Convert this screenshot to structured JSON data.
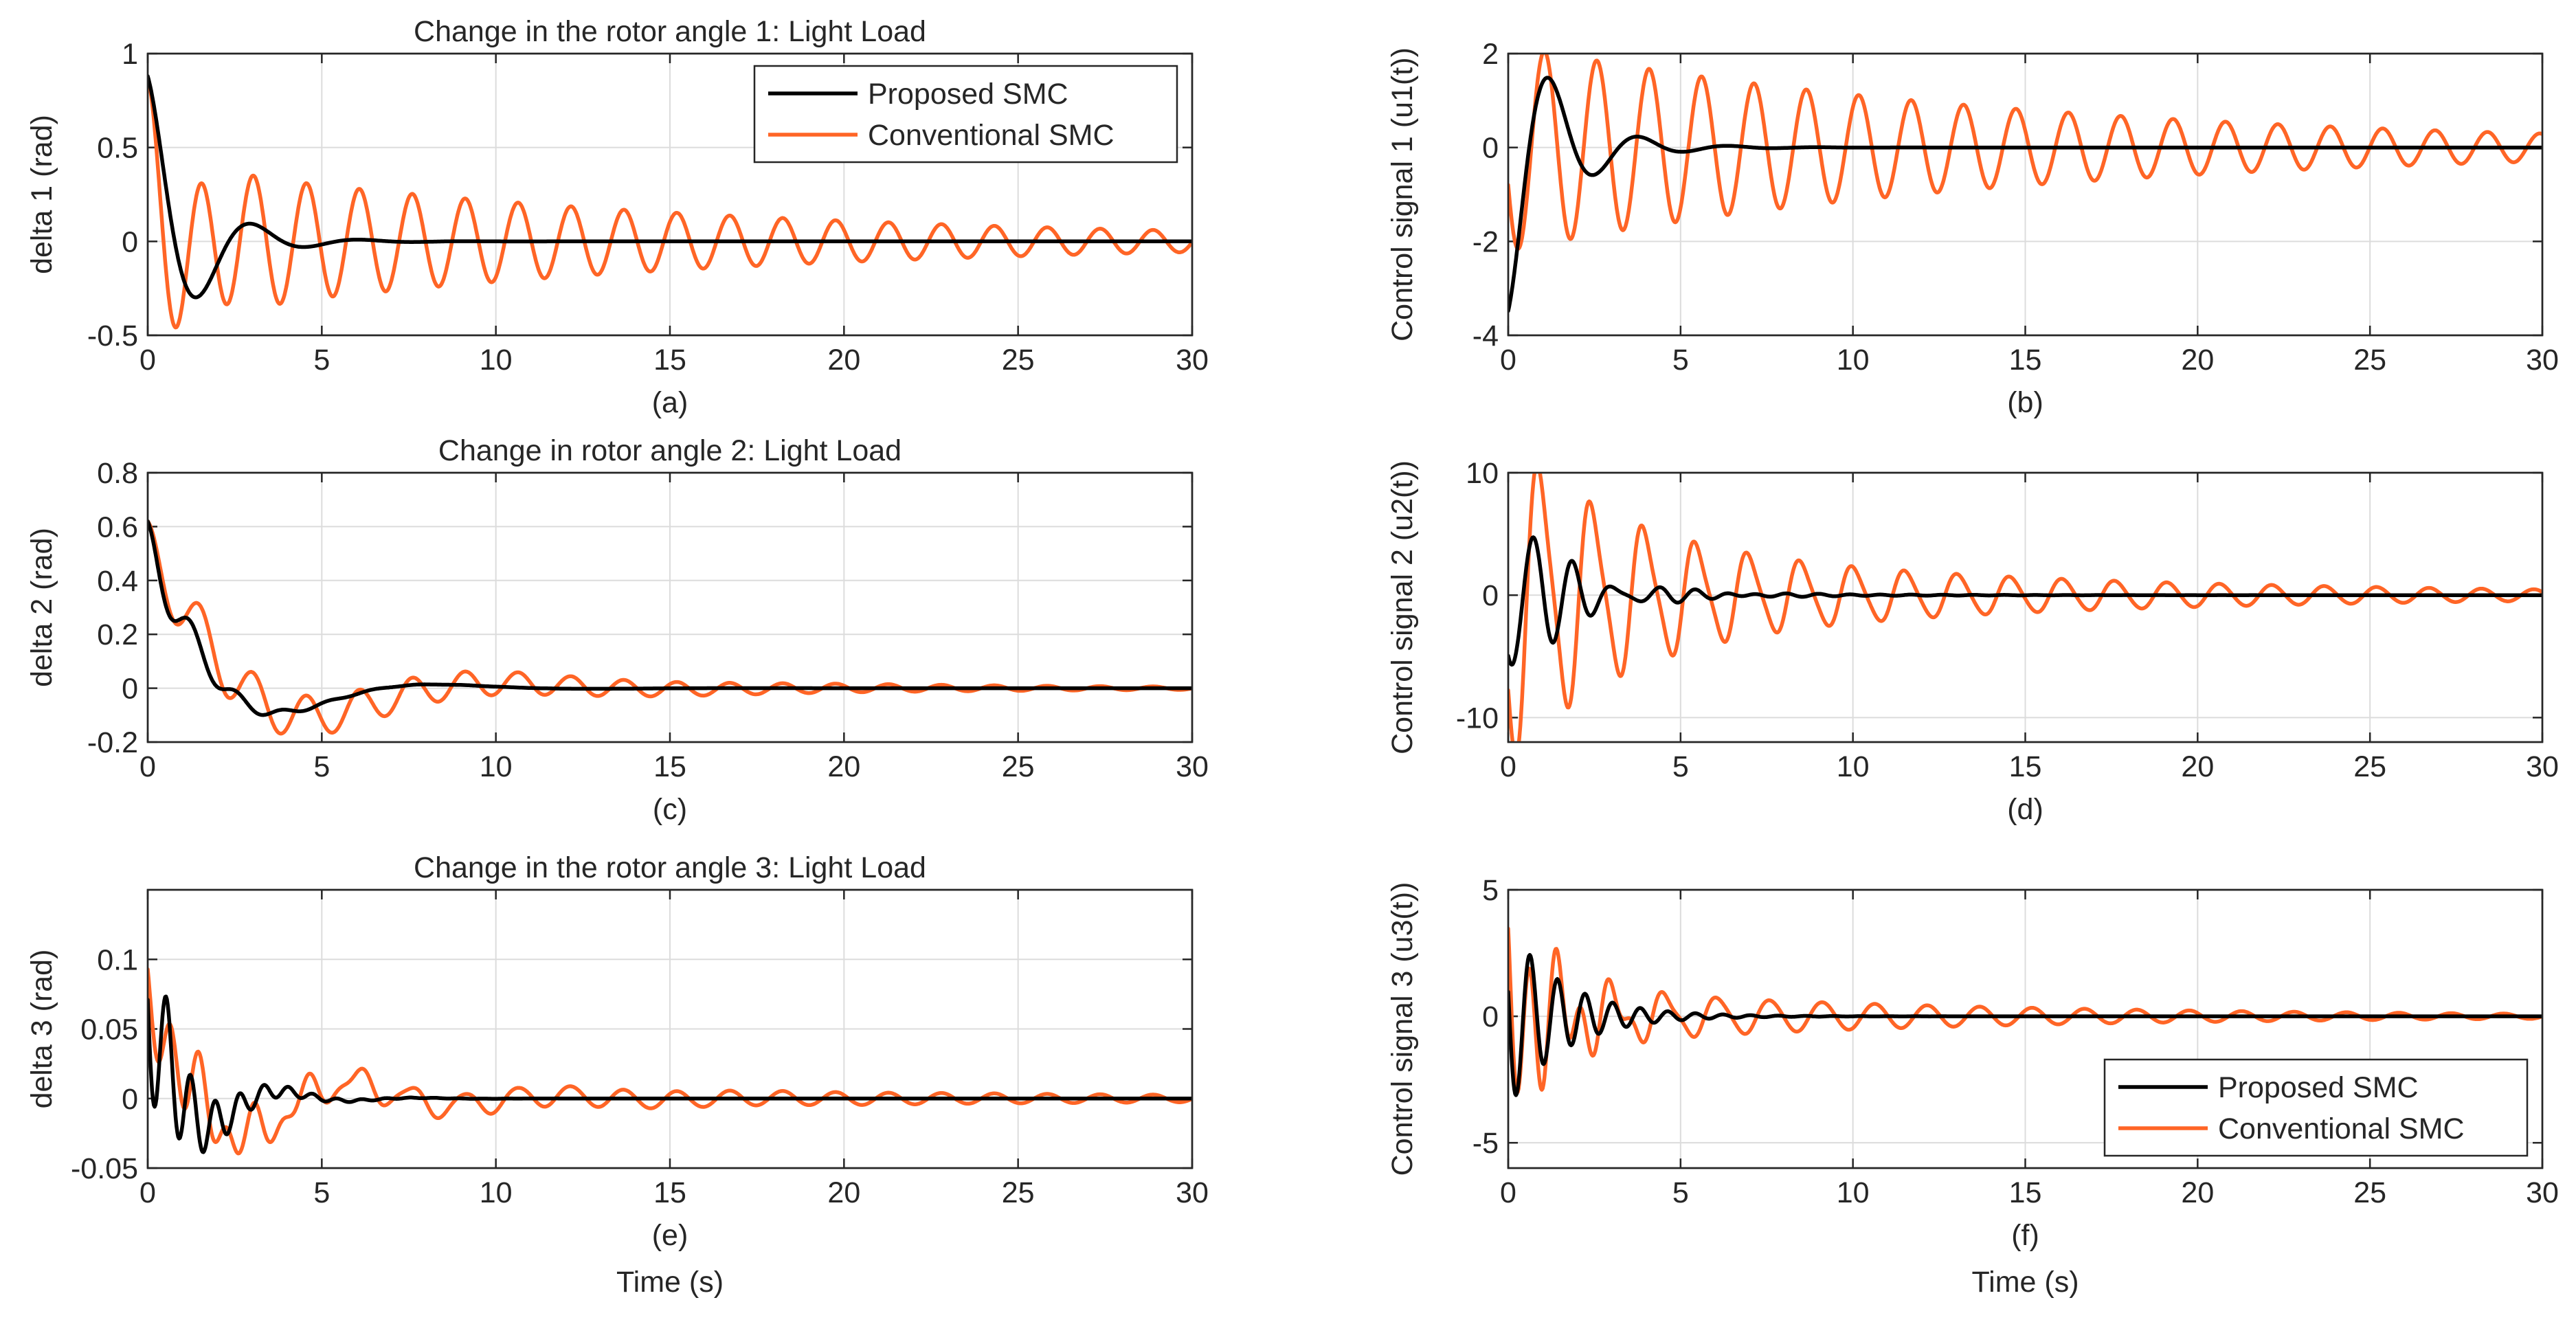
{
  "figure": {
    "colors": {
      "proposed": "#000000",
      "conventional": "#ff6526",
      "axis": "#262626",
      "grid": "#dcdcdc"
    }
  },
  "chart_data": [
    {
      "id": "a",
      "type": "line",
      "caption": "(a)",
      "title": "Change in the rotor angle 1: Light Load",
      "xlabel": "",
      "ylabel": "delta 1 (rad)",
      "xlim": [
        0,
        30
      ],
      "ylim": [
        -0.5,
        1
      ],
      "xticks": [
        0,
        5,
        10,
        15,
        20,
        25,
        30
      ],
      "xtick_labels": [
        "0",
        "5",
        "10",
        "15",
        "20",
        "25",
        "30"
      ],
      "yticks": [
        -0.5,
        0,
        0.5,
        1
      ],
      "ytick_labels": [
        "-0.5",
        "0",
        "0.5",
        "1"
      ],
      "legend": {
        "position": "top-right",
        "entries": [
          "Proposed SMC",
          "Conventional SMC"
        ]
      },
      "series": [
        {
          "name": "Proposed SMC",
          "color": "#000000",
          "model": {
            "offset": 0,
            "terms": [
              {
                "amp": 0.88,
                "tau": 1.35,
                "period": 3.1,
                "phase": 0
              }
            ]
          }
        },
        {
          "name": "Conventional SMC",
          "color": "#ff6526",
          "model": {
            "offset": 0,
            "terms": [
              {
                "amp": 0.45,
                "tau": 0.9,
                "period": 2.6,
                "phase": 0
              },
              {
                "amp": 0.42,
                "tau": 15,
                "period": 1.52,
                "phase": 0
              }
            ]
          }
        }
      ]
    },
    {
      "id": "b",
      "type": "line",
      "caption": "(b)",
      "title": "",
      "xlabel": "",
      "ylabel": "Control signal 1 (u1(t))",
      "xlim": [
        0,
        30
      ],
      "ylim": [
        -4,
        2
      ],
      "xticks": [
        0,
        5,
        10,
        15,
        20,
        25,
        30
      ],
      "xtick_labels": [
        "0",
        "5",
        "10",
        "15",
        "20",
        "25",
        "30"
      ],
      "yticks": [
        -4,
        -2,
        0,
        2
      ],
      "ytick_labels": [
        "-4",
        "-2",
        "0",
        "2"
      ],
      "legend": null,
      "series": [
        {
          "name": "Proposed SMC",
          "color": "#000000",
          "model": {
            "offset": 0,
            "terms": [
              {
                "amp": -3.5,
                "tau": 1.4,
                "period": 2.6,
                "phase": 0.1
              }
            ]
          }
        },
        {
          "name": "Conventional SMC",
          "color": "#ff6526",
          "model": {
            "offset": 0,
            "terms": [
              {
                "amp": -2.2,
                "tau": 15,
                "period": 1.52,
                "phase": -1.2
              }
            ]
          }
        }
      ]
    },
    {
      "id": "c",
      "type": "line",
      "caption": "(c)",
      "title": "Change in rotor angle 2: Light Load",
      "xlabel": "",
      "ylabel": "delta 2 (rad)",
      "xlim": [
        0,
        30
      ],
      "ylim": [
        -0.2,
        0.8
      ],
      "xticks": [
        0,
        5,
        10,
        15,
        20,
        25,
        30
      ],
      "xtick_labels": [
        "0",
        "5",
        "10",
        "15",
        "20",
        "25",
        "30"
      ],
      "yticks": [
        -0.2,
        0,
        0.2,
        0.4,
        0.6,
        0.8
      ],
      "ytick_labels": [
        "-0.2",
        "0",
        "0.2",
        "0.4",
        "0.6",
        "0.8"
      ],
      "legend": null,
      "series": [
        {
          "name": "Proposed SMC",
          "color": "#000000",
          "model": {
            "offset": 0,
            "terms": [
              {
                "amp": 0.5,
                "tau": 2.4,
                "period": 9.0,
                "phase": 0
              },
              {
                "amp": 0.12,
                "tau": 1.6,
                "period": 1.3,
                "phase": 0
              }
            ]
          }
        },
        {
          "name": "Conventional SMC",
          "color": "#ff6526",
          "model": {
            "offset": 0,
            "terms": [
              {
                "amp": 0.5,
                "tau": 3.2,
                "period": 11.0,
                "phase": 0
              },
              {
                "amp": 0.12,
                "tau": 10,
                "period": 1.52,
                "phase": 0
              }
            ]
          }
        }
      ]
    },
    {
      "id": "d",
      "type": "line",
      "caption": "(d)",
      "title": "",
      "xlabel": "",
      "ylabel": "Control signal 2 (u2(t))",
      "xlim": [
        0,
        30
      ],
      "ylim": [
        -12,
        10
      ],
      "xticks": [
        0,
        5,
        10,
        15,
        20,
        25,
        30
      ],
      "xtick_labels": [
        "0",
        "5",
        "10",
        "15",
        "20",
        "25",
        "30"
      ],
      "yticks": [
        -10,
        0,
        10
      ],
      "ytick_labels": [
        "-10",
        "0",
        "10"
      ],
      "legend": null,
      "series": [
        {
          "name": "Proposed SMC",
          "color": "#000000",
          "model": {
            "offset": 0,
            "terms": [
              {
                "amp": -7,
                "tau": 1.6,
                "period": 1.2,
                "phase": -0.5
              },
              {
                "amp": 1.2,
                "tau": 3.5,
                "period": 0.9,
                "phase": 0
              }
            ]
          }
        },
        {
          "name": "Conventional SMC",
          "color": "#ff6526",
          "model": {
            "offset": 0,
            "terms": [
              {
                "amp": -9,
                "tau": 3.0,
                "period": 1.52,
                "phase": -0.8
              },
              {
                "amp": -4,
                "tau": 14,
                "period": 1.52,
                "phase": -0.5
              },
              {
                "amp": 2.2,
                "tau": 5,
                "period": 0.76,
                "phase": 0.4
              }
            ]
          }
        }
      ]
    },
    {
      "id": "e",
      "type": "line",
      "caption": "(e)",
      "title": "Change in the rotor angle 3: Light Load",
      "xlabel": "Time (s)",
      "ylabel": "delta 3 (rad)",
      "xlim": [
        0,
        30
      ],
      "ylim": [
        -0.05,
        0.15
      ],
      "xticks": [
        0,
        5,
        10,
        15,
        20,
        25,
        30
      ],
      "xtick_labels": [
        "0",
        "5",
        "10",
        "15",
        "20",
        "25",
        "30"
      ],
      "yticks": [
        -0.05,
        0,
        0.05,
        0.1
      ],
      "ytick_labels": [
        "-0.05",
        "0",
        "0.05",
        "0.1"
      ],
      "legend": null,
      "series": [
        {
          "name": "Proposed SMC",
          "color": "#000000",
          "model": {
            "offset": 0,
            "terms": [
              {
                "amp": 0.065,
                "tau": 1.4,
                "period": 0.7,
                "phase": 1.4
              },
              {
                "amp": 0.06,
                "tau": 1.6,
                "period": 4.0,
                "phase": 0
              }
            ]
          }
        },
        {
          "name": "Conventional SMC",
          "color": "#ff6526",
          "model": {
            "offset": 0,
            "terms": [
              {
                "amp": 0.035,
                "tau": 2.5,
                "period": 0.8,
                "phase": 1.0
              },
              {
                "amp": 0.06,
                "tau": 3.5,
                "period": 6.0,
                "phase": 0
              },
              {
                "amp": 0.014,
                "tau": 18,
                "period": 1.52,
                "phase": 0
              }
            ]
          }
        }
      ]
    },
    {
      "id": "f",
      "type": "line",
      "caption": "(f)",
      "title": "",
      "xlabel": "Time (s)",
      "ylabel": "Control signal 3 (u3(t))",
      "xlim": [
        0,
        30
      ],
      "ylim": [
        -6,
        5
      ],
      "xticks": [
        0,
        5,
        10,
        15,
        20,
        25,
        30
      ],
      "xtick_labels": [
        "0",
        "5",
        "10",
        "15",
        "20",
        "25",
        "30"
      ],
      "yticks": [
        -5,
        0,
        5
      ],
      "ytick_labels": [
        "-5",
        "0",
        "5"
      ],
      "legend": {
        "position": "bottom-right",
        "entries": [
          "Proposed SMC",
          "Conventional SMC"
        ]
      },
      "series": [
        {
          "name": "Proposed SMC",
          "color": "#000000",
          "model": {
            "offset": 0,
            "terms": [
              {
                "amp": 3.6,
                "tau": 1.6,
                "period": 0.8,
                "phase": 1.3
              }
            ]
          }
        },
        {
          "name": "Conventional SMC",
          "color": "#ff6526",
          "model": {
            "offset": 0,
            "terms": [
              {
                "amp": 4.2,
                "tau": 1.6,
                "period": 0.75,
                "phase": 1.0
              },
              {
                "amp": 1.2,
                "tau": 12,
                "period": 1.52,
                "phase": 0
              }
            ]
          }
        }
      ]
    }
  ]
}
